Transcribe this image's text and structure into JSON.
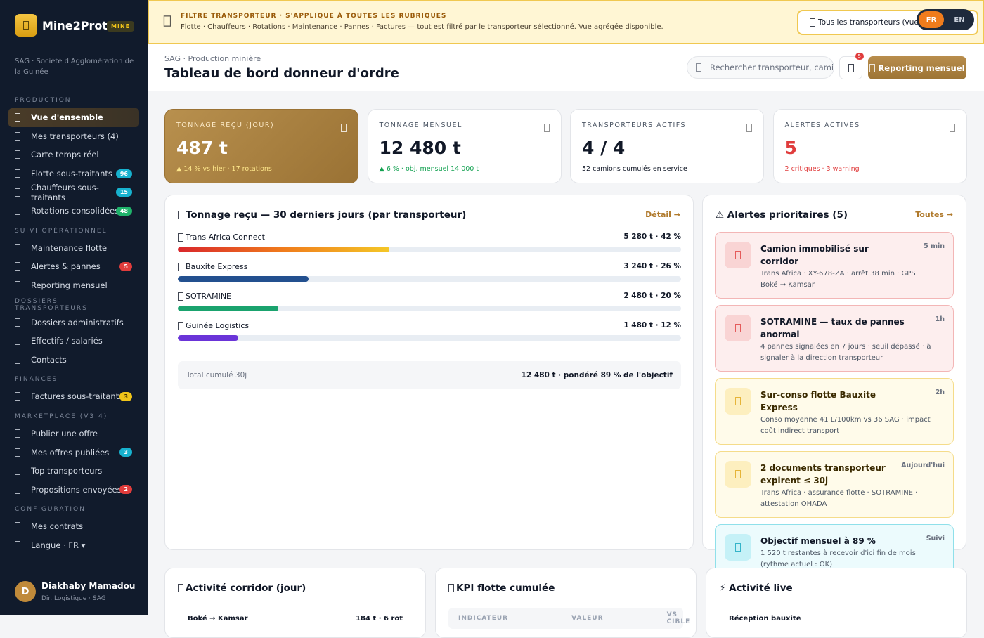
{
  "sidebar": {
    "brand": "Mine2Prot.",
    "brand_tag": "MINE",
    "org": "SAG · Société d'Agglomération de la Guinée",
    "sections": [
      {
        "title": "PRODUCTION",
        "items": [
          {
            "label": "Vue d'ensemble",
            "active": true
          },
          {
            "label": "Mes transporteurs (4)"
          },
          {
            "label": "Carte temps réel"
          },
          {
            "label": "Flotte sous-traitants",
            "badge": "96",
            "tone": "cyan"
          },
          {
            "label": "Chauffeurs sous-traitants",
            "badge": "15",
            "tone": "cyan"
          },
          {
            "label": "Rotations consolidées",
            "badge": "48",
            "tone": "green"
          }
        ]
      },
      {
        "title": "SUIVI OPÉRATIONNEL",
        "items": [
          {
            "label": "Maintenance flotte"
          },
          {
            "label": "Alertes & pannes",
            "badge": "5",
            "tone": "red"
          },
          {
            "label": "Reporting mensuel"
          }
        ]
      },
      {
        "title": "DOSSIERS TRANSPORTEURS",
        "items": [
          {
            "label": "Dossiers administratifs"
          },
          {
            "label": "Effectifs / salariés"
          },
          {
            "label": "Contacts"
          }
        ]
      },
      {
        "title": "FINANCES",
        "items": [
          {
            "label": "Factures sous-traitants",
            "badge": "3",
            "tone": "yellow"
          }
        ]
      },
      {
        "title": "MARKETPLACE (V3.4)",
        "items": [
          {
            "label": "Publier une offre"
          },
          {
            "label": "Mes offres publiées",
            "badge": "3",
            "tone": "cyan"
          },
          {
            "label": "Top transporteurs"
          },
          {
            "label": "Propositions envoyées",
            "badge": "2",
            "tone": "red"
          }
        ]
      },
      {
        "title": "CONFIGURATION",
        "items": [
          {
            "label": "Mes contrats"
          },
          {
            "label": "Langue · FR ▾"
          }
        ]
      }
    ],
    "user": {
      "initial": "D",
      "name": "Diakhaby Mamadou",
      "role": "Dir. Logistique · SAG"
    }
  },
  "banner": {
    "title": "FILTRE TRANSPORTEUR · S'APPLIQUE À TOUTES LES RUBRIQUES",
    "text": "Flotte · Chauffeurs · Rotations · Maintenance · Pannes · Factures — tout est filtré par le transporteur sélectionné. Vue agrégée disponible.",
    "select": "Tous les transporteurs (vue",
    "languages": [
      "FR",
      "EN"
    ]
  },
  "header": {
    "breadcrumb": "SAG · Production minière",
    "title": "Tableau de bord donneur d'ordre",
    "search": "Rechercher transporteur, cami",
    "notifications": "5",
    "button": "Reporting mensuel"
  },
  "kpis": [
    {
      "label": "TONNAGE REÇU (JOUR)",
      "value": "487 t",
      "note": "▲ 14 % vs hier · 17 rotations",
      "tone": "gold"
    },
    {
      "label": "TONNAGE MENSUEL",
      "value": "12 480 t",
      "note": "▲ 6 % · obj. mensuel 14 000 t",
      "tone": "green"
    },
    {
      "label": "TRANSPORTEURS ACTIFS",
      "value": "4 / 4",
      "note": "52 camions cumulés en service",
      "tone": "plain"
    },
    {
      "label": "ALERTES ACTIVES",
      "value": "5",
      "note": "2 critiques · 3 warning",
      "tone": "red"
    }
  ],
  "tonnage": {
    "title": "Tonnage reçu — 30 derniers jours (par transporteur)",
    "link": "Détail →",
    "rows": [
      {
        "name": "Trans Africa Connect",
        "label": "5 280 t · 42 %",
        "share": 42,
        "color": "linear-gradient(90deg,#d9262b,#f07c1c 50%,#f4c727)"
      },
      {
        "name": "Bauxite Express",
        "label": "3 240 t · 26 %",
        "share": 26,
        "color": "#23508f"
      },
      {
        "name": "SOTRAMINE",
        "label": "2 480 t · 20 %",
        "share": 20,
        "color": "#1aa36e"
      },
      {
        "name": "Guinée Logistics",
        "label": "1 480 t · 12 %",
        "share": 12,
        "color": "#6a34d8"
      }
    ],
    "total_label": "Total cumulé 30j",
    "total_value": "12 480 t · pondéré 89 % de l'objectif"
  },
  "alerts": {
    "title": "⚠ Alertes prioritaires (5)",
    "link": "Toutes →",
    "items": [
      {
        "title": "Camion immobilisé sur corridor",
        "text": "Trans Africa · XY-678-ZA · arrêt 38 min · GPS Boké → Kamsar",
        "time": "5 min",
        "tone": "red"
      },
      {
        "title": "SOTRAMINE — taux de pannes anormal",
        "text": "4 pannes signalées en 7 jours · seuil dépassé · à signaler à la direction transporteur",
        "time": "1h",
        "tone": "red"
      },
      {
        "title": "Sur-conso flotte Bauxite Express",
        "text": "Conso moyenne 41 L/100km vs 36 SAG · impact coût indirect transport",
        "time": "2h",
        "tone": "yellow"
      },
      {
        "title": "2 documents transporteur expirent ≤ 30j",
        "text": "Trans Africa · assurance flotte · SOTRAMINE · attestation OHADA",
        "time": "Aujourd'hui",
        "tone": "yellow"
      },
      {
        "title": "Objectif mensuel à 89 %",
        "text": "1 520 t restantes à recevoir d'ici fin de mois (rythme actuel : OK)",
        "time": "Suivi",
        "tone": "cyan"
      }
    ]
  },
  "bottom": [
    {
      "title": "Activité corridor (jour)",
      "row": "Boké → Kamsar",
      "row_value": "184 t · 6 rot"
    },
    {
      "title": "KPI flotte cumulée",
      "columns": [
        "INDICATEUR",
        "VALEUR",
        "VS CIBLE"
      ]
    },
    {
      "title": "⚡ Activité live",
      "row": "Réception bauxite"
    }
  ]
}
